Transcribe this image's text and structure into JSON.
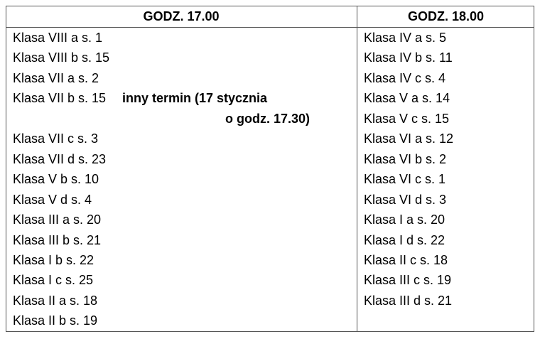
{
  "table": {
    "headers": [
      "GODZ. 17.00",
      "GODZ. 18.00"
    ],
    "columns": [
      [
        {
          "text": "Klasa VIII a s. 1"
        },
        {
          "text": "Klasa VIII b s. 15"
        },
        {
          "text": "Klasa VII a s. 2"
        },
        {
          "text": "Klasa VII b s. 15",
          "note": [
            "inny termin (17 stycznia",
            "o godz. 17.30)"
          ]
        },
        {
          "text": "Klasa VII c s. 3"
        },
        {
          "text": "Klasa VII d s. 23"
        },
        {
          "text": "Klasa V b s. 10"
        },
        {
          "text": "Klasa V d s. 4"
        },
        {
          "text": "Klasa III a s. 20"
        },
        {
          "text": "Klasa III b s. 21"
        },
        {
          "text": "Klasa I b s. 22"
        },
        {
          "text": "Klasa I c s. 25"
        },
        {
          "text": "Klasa II a s. 18"
        },
        {
          "text": "Klasa II b s. 19"
        }
      ],
      [
        {
          "text": "Klasa IV a s. 5"
        },
        {
          "text": "Klasa IV b s. 11"
        },
        {
          "text": "Klasa IV c s. 4"
        },
        {
          "text": "Klasa V a s. 14"
        },
        {
          "text": "Klasa V c s. 15"
        },
        {
          "text": "Klasa VI a s. 12"
        },
        {
          "text": "Klasa VI b s. 2"
        },
        {
          "text": "Klasa VI c s. 1"
        },
        {
          "text": "Klasa VI d s. 3"
        },
        {
          "text": "Klasa I a s. 20"
        },
        {
          "text": "Klasa I d s. 22"
        },
        {
          "text": "Klasa II c s. 18"
        },
        {
          "text": "Klasa III c s. 19"
        },
        {
          "text": "Klasa III d s. 21"
        }
      ]
    ]
  }
}
